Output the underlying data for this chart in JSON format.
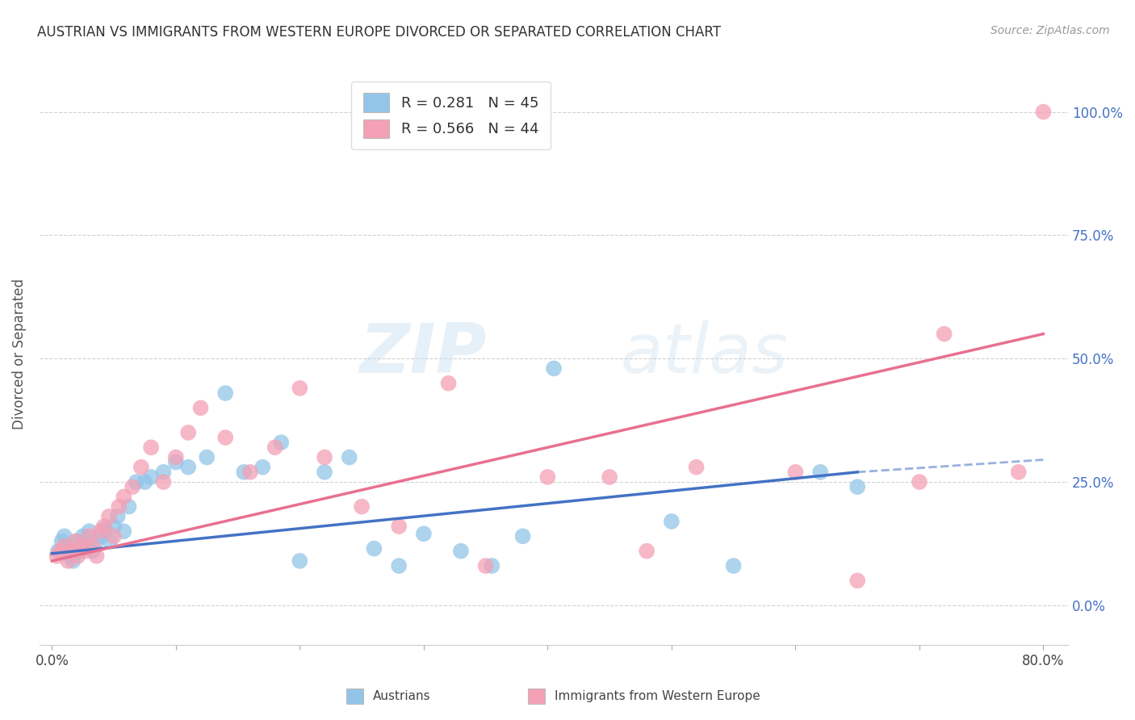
{
  "title": "AUSTRIAN VS IMMIGRANTS FROM WESTERN EUROPE DIVORCED OR SEPARATED CORRELATION CHART",
  "source": "Source: ZipAtlas.com",
  "xlabel_ticks": [
    "0.0%",
    "",
    "",
    "",
    "",
    "",
    "",
    "",
    "80.0%"
  ],
  "xlabel_vals": [
    0.0,
    10.0,
    20.0,
    30.0,
    40.0,
    50.0,
    60.0,
    70.0,
    80.0
  ],
  "ylabel_ticks": [
    "0.0%",
    "25.0%",
    "50.0%",
    "75.0%",
    "100.0%"
  ],
  "ylabel_vals": [
    0.0,
    25.0,
    50.0,
    75.0,
    100.0
  ],
  "ylabel_label": "Divorced or Separated",
  "xlim": [
    -1.0,
    82.0
  ],
  "ylim": [
    -8.0,
    110.0
  ],
  "legend_label1": "Austrians",
  "legend_label2": "Immigrants from Western Europe",
  "r1": 0.281,
  "n1": 45,
  "r2": 0.566,
  "n2": 44,
  "color_blue": "#92C5E8",
  "color_pink": "#F4A0B5",
  "line_blue": "#4472C4",
  "line_pink": "#E87090",
  "watermark_zip": "ZIP",
  "watermark_atlas": "atlas",
  "blue_x": [
    0.5,
    0.8,
    1.0,
    1.2,
    1.5,
    1.7,
    2.0,
    2.2,
    2.5,
    2.7,
    3.0,
    3.3,
    3.6,
    4.0,
    4.3,
    4.7,
    5.0,
    5.3,
    5.8,
    6.2,
    6.8,
    7.5,
    8.0,
    9.0,
    10.0,
    11.0,
    12.5,
    14.0,
    15.5,
    17.0,
    18.5,
    20.0,
    22.0,
    24.0,
    26.0,
    28.0,
    30.0,
    33.0,
    35.5,
    38.0,
    40.5,
    50.0,
    55.0,
    62.0,
    65.0
  ],
  "blue_y": [
    11.0,
    13.0,
    14.0,
    12.0,
    10.0,
    9.0,
    13.0,
    11.0,
    14.0,
    12.5,
    15.0,
    11.0,
    13.0,
    14.0,
    15.5,
    13.0,
    16.0,
    18.0,
    15.0,
    20.0,
    25.0,
    25.0,
    26.0,
    27.0,
    29.0,
    28.0,
    30.0,
    43.0,
    27.0,
    28.0,
    33.0,
    9.0,
    27.0,
    30.0,
    11.5,
    8.0,
    14.5,
    11.0,
    8.0,
    14.0,
    48.0,
    17.0,
    8.0,
    27.0,
    24.0
  ],
  "pink_x": [
    0.4,
    0.7,
    1.0,
    1.3,
    1.6,
    1.9,
    2.1,
    2.4,
    2.7,
    3.0,
    3.3,
    3.6,
    3.9,
    4.2,
    4.6,
    5.0,
    5.4,
    5.8,
    6.5,
    7.2,
    8.0,
    9.0,
    10.0,
    11.0,
    12.0,
    14.0,
    16.0,
    18.0,
    20.0,
    22.0,
    25.0,
    28.0,
    32.0,
    35.0,
    40.0,
    45.0,
    48.0,
    52.0,
    60.0,
    65.0,
    70.0,
    72.0,
    78.0,
    80.0
  ],
  "pink_y": [
    10.0,
    11.0,
    12.0,
    9.0,
    11.0,
    13.0,
    10.0,
    12.0,
    11.0,
    14.0,
    12.0,
    10.0,
    15.0,
    16.0,
    18.0,
    14.0,
    20.0,
    22.0,
    24.0,
    28.0,
    32.0,
    25.0,
    30.0,
    35.0,
    40.0,
    34.0,
    27.0,
    32.0,
    44.0,
    30.0,
    20.0,
    16.0,
    45.0,
    8.0,
    26.0,
    26.0,
    11.0,
    28.0,
    27.0,
    5.0,
    25.0,
    55.0,
    27.0,
    100.0
  ],
  "blue_reg_x0": 0.0,
  "blue_reg_y0": 10.5,
  "blue_reg_x1": 65.0,
  "blue_reg_y1": 27.0,
  "blue_dash_x0": 65.0,
  "blue_dash_y0": 27.0,
  "blue_dash_x1": 80.0,
  "blue_dash_y1": 29.5,
  "pink_reg_x0": 0.0,
  "pink_reg_y0": 9.0,
  "pink_reg_x1": 80.0,
  "pink_reg_y1": 55.0
}
